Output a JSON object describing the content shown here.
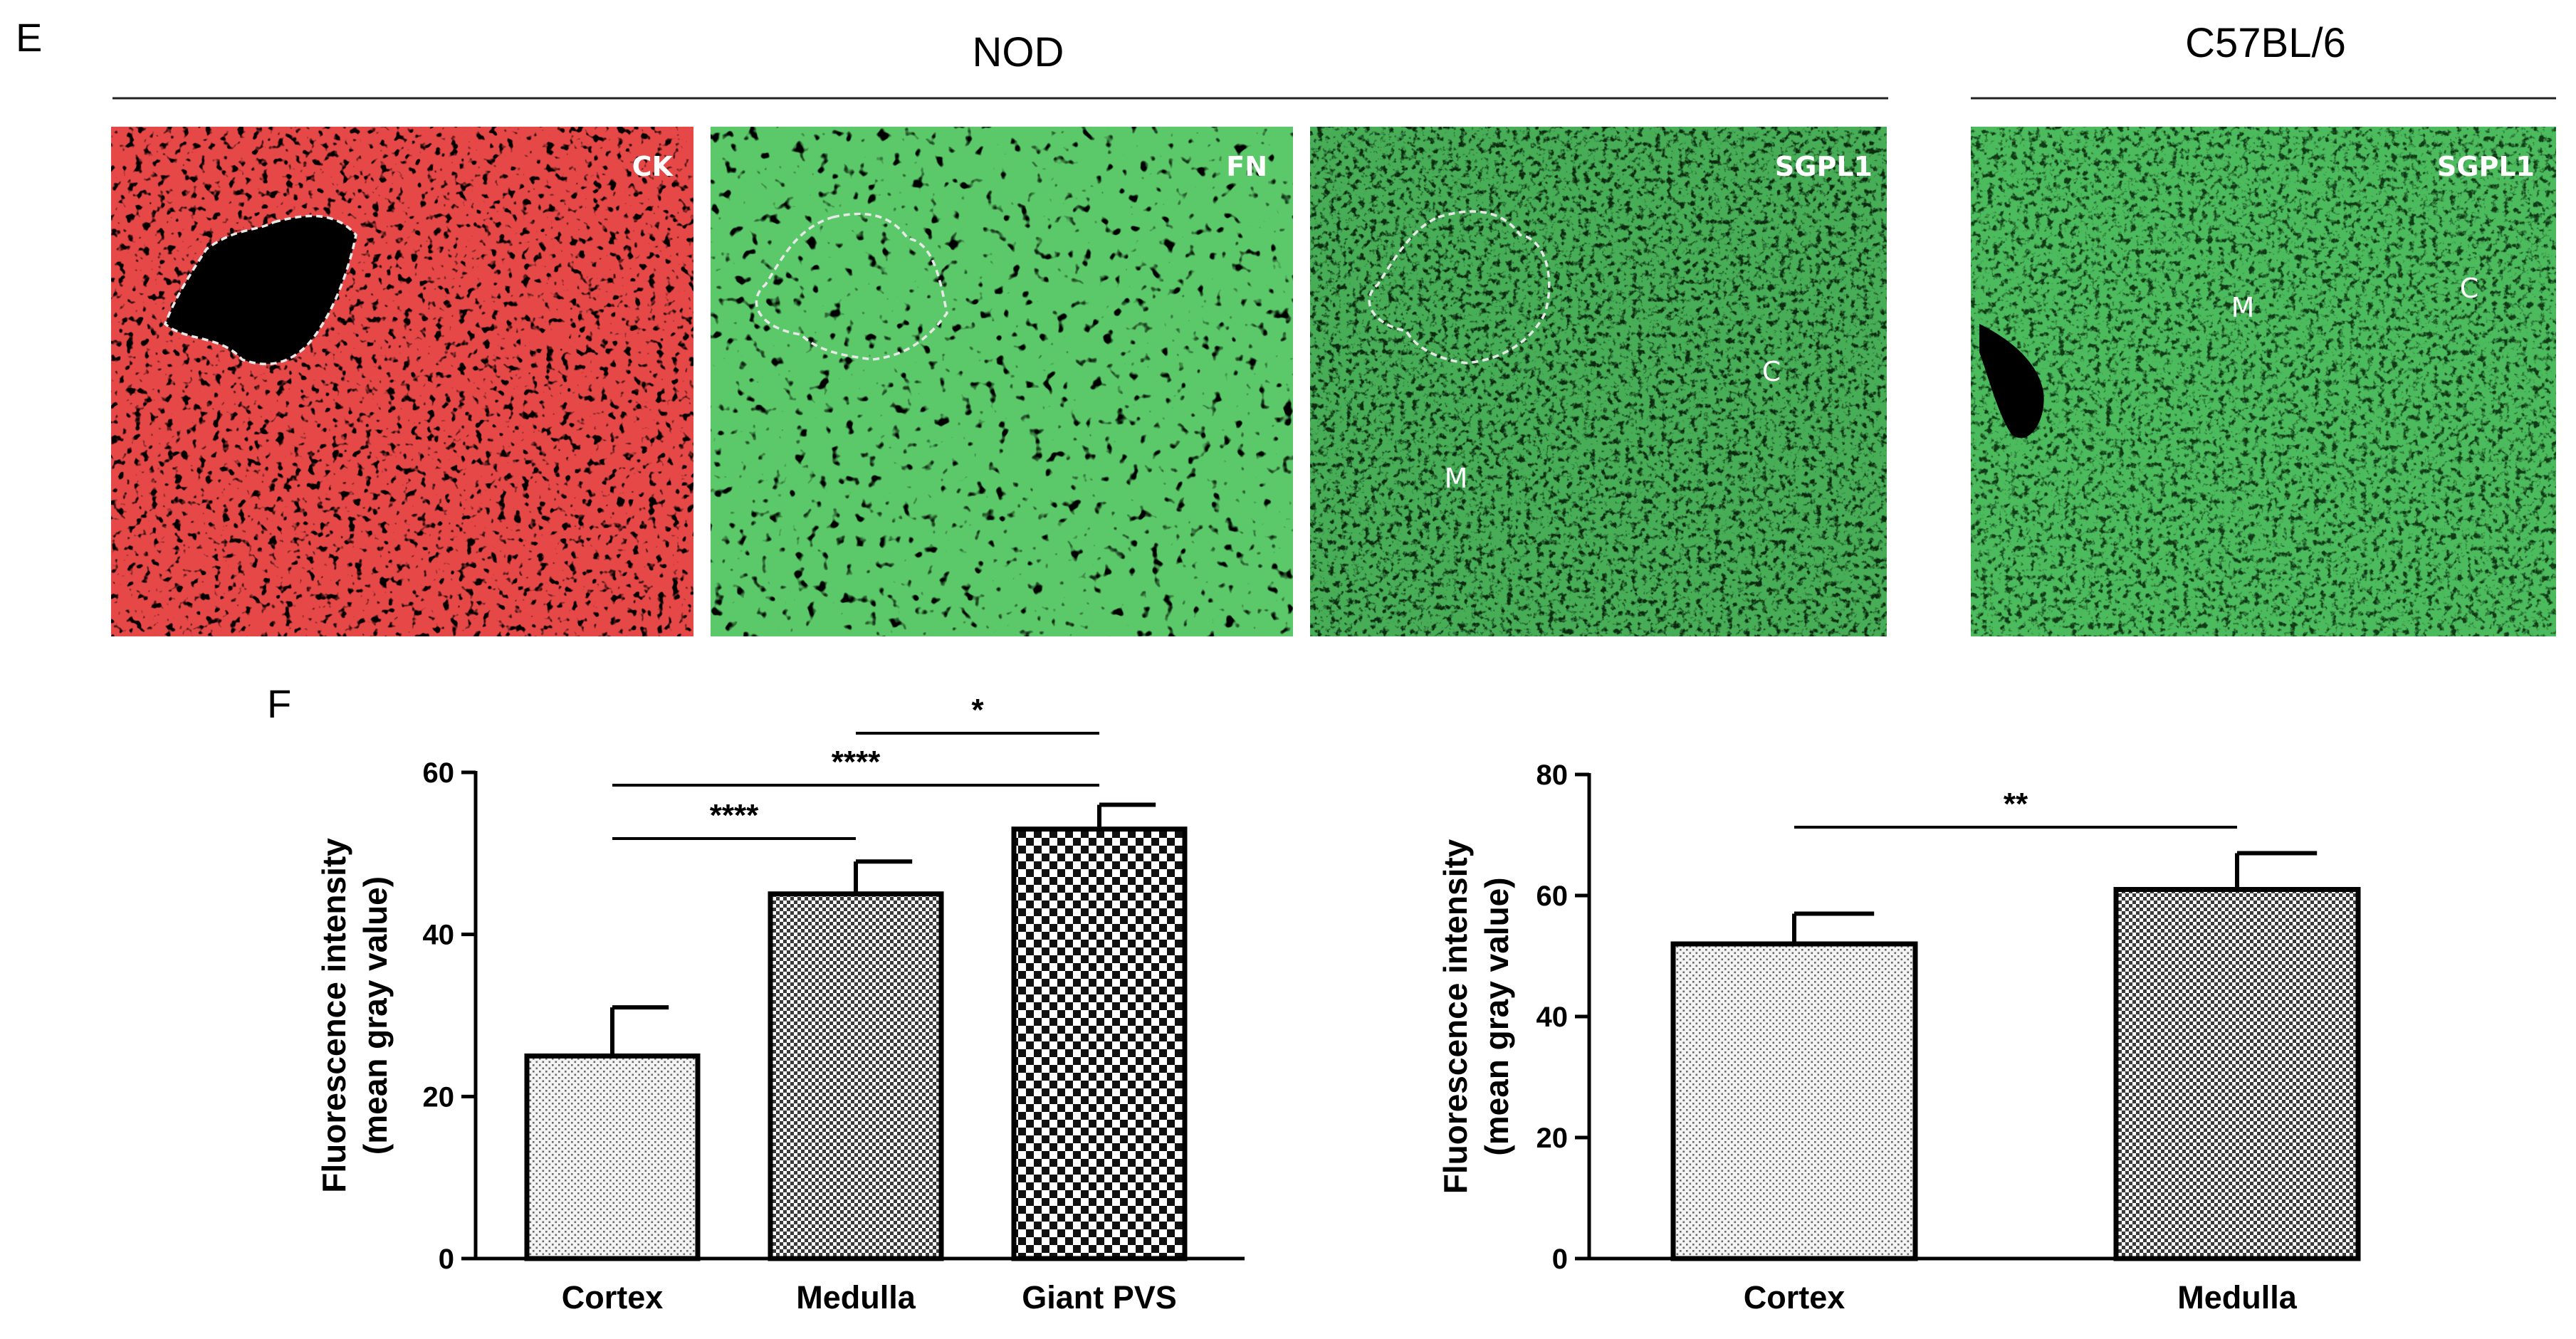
{
  "panel_e": {
    "letter": "E",
    "groups": [
      "NOD",
      "C57BL/6"
    ],
    "images": [
      {
        "label": "CK",
        "color": "#ff2020",
        "bg": "#050000",
        "regions": []
      },
      {
        "label": "FN",
        "color": "#29c22e",
        "bg": "#000000",
        "regions": []
      },
      {
        "label": "SGPL1",
        "color": "#2bb53a",
        "bg": "#0b2a0f",
        "regions": [
          "C",
          "M"
        ]
      },
      {
        "label": "SGPL1",
        "color": "#2fae35",
        "bg": "#103a16",
        "regions": [
          "M",
          "C"
        ]
      }
    ]
  },
  "chart_data": [
    {
      "panel": "F",
      "type": "bar",
      "categories": [
        "Cortex",
        "Medulla",
        "Giant PVS"
      ],
      "values": [
        25,
        45,
        53
      ],
      "errors": [
        6,
        4,
        3
      ],
      "patterns": [
        "dots",
        "fine-check",
        "coarse-check"
      ],
      "ylabel": "Fluorescence intensity\n(mean gray value)",
      "ylim": [
        0,
        60
      ],
      "yticks": [
        0,
        20,
        40,
        60
      ],
      "significance": [
        {
          "from": 0,
          "to": 1,
          "label": "****"
        },
        {
          "from": 0,
          "to": 2,
          "label": "****"
        },
        {
          "from": 1,
          "to": 2,
          "label": "*"
        }
      ]
    },
    {
      "type": "bar",
      "categories": [
        "Cortex",
        "Medulla"
      ],
      "values": [
        52,
        61
      ],
      "errors": [
        5,
        6
      ],
      "patterns": [
        "dots",
        "fine-check"
      ],
      "ylabel": "Fluorescence intensity\n(mean gray value)",
      "ylim": [
        0,
        80
      ],
      "yticks": [
        0,
        20,
        40,
        60,
        80
      ],
      "significance": [
        {
          "from": 0,
          "to": 1,
          "label": "**"
        }
      ]
    }
  ]
}
